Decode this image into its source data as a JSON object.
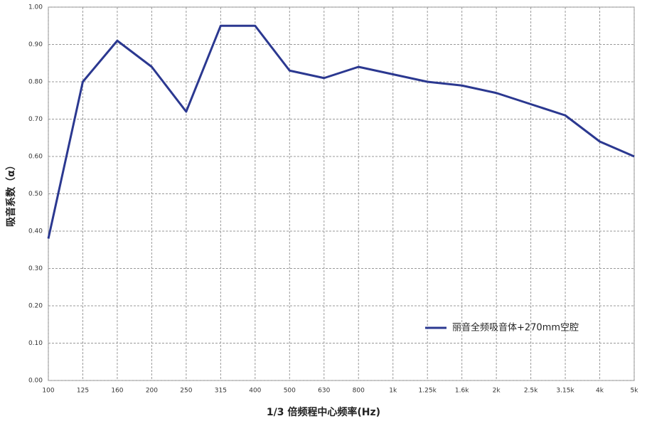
{
  "chart_data": {
    "type": "line",
    "x_label": "1/3 倍频程中心频率(Hz)",
    "y_label": "吸音系数（α）",
    "categories": [
      "100",
      "125",
      "160",
      "200",
      "250",
      "315",
      "400",
      "500",
      "630",
      "800",
      "1k",
      "1.25k",
      "1.6k",
      "2k",
      "2.5k",
      "3.15k",
      "4k",
      "5k"
    ],
    "series": [
      {
        "name": "丽音全频吸音体+270mm空腔",
        "color": "#2b3890",
        "values": [
          0.38,
          0.8,
          0.91,
          0.84,
          0.72,
          0.95,
          0.95,
          0.83,
          0.81,
          0.84,
          0.82,
          0.8,
          0.79,
          0.77,
          0.74,
          0.71,
          0.64,
          0.6
        ]
      }
    ],
    "ylim": [
      0,
      1
    ],
    "yticks": [
      {
        "value": 0,
        "label": "0.00"
      },
      {
        "value": 0.1,
        "label": "0.10"
      },
      {
        "value": 0.2,
        "label": "0.20"
      },
      {
        "value": 0.3,
        "label": "0.30"
      },
      {
        "value": 0.4,
        "label": "0.40"
      },
      {
        "value": 0.5,
        "label": "0.50"
      },
      {
        "value": 0.6,
        "label": "0.60"
      },
      {
        "value": 0.7,
        "label": "0.70"
      },
      {
        "value": 0.8,
        "label": "0.80"
      },
      {
        "value": 0.9,
        "label": "0.90"
      },
      {
        "value": 1,
        "label": "1.00"
      }
    ],
    "grid": true,
    "legend": "lower right"
  }
}
